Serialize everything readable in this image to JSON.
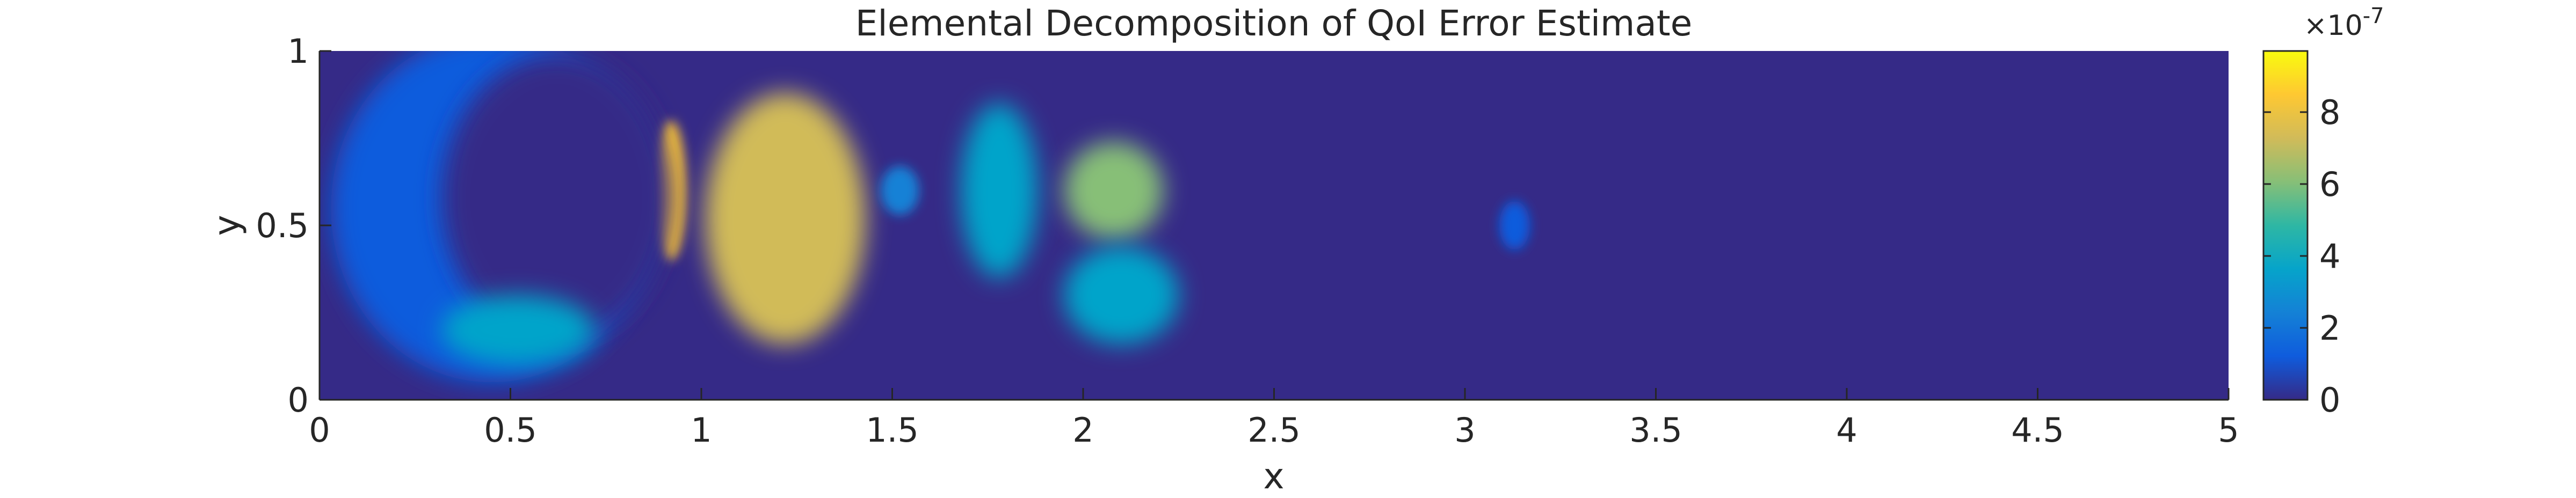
{
  "chart_data": {
    "type": "heatmap",
    "title": "Elemental Decomposition of QoI Error Estimate",
    "xlabel": "x",
    "ylabel": "y",
    "xlim": [
      0,
      5
    ],
    "ylim": [
      0,
      1
    ],
    "x_ticks": [
      0,
      0.5,
      1,
      1.5,
      2,
      2.5,
      3,
      3.5,
      4,
      4.5,
      5
    ],
    "x_tick_labels": [
      "0",
      "0.5",
      "1",
      "1.5",
      "2",
      "2.5",
      "3",
      "3.5",
      "4",
      "4.5",
      "5"
    ],
    "y_ticks": [
      0,
      0.5,
      1
    ],
    "y_tick_labels": [
      "0",
      "0.5",
      "1"
    ],
    "colorbar": {
      "min": 0,
      "max": 9.7,
      "ticks": [
        0,
        2,
        4,
        6,
        8
      ],
      "tick_labels": [
        "0",
        "2",
        "4",
        "6",
        "8"
      ],
      "exponent_label": "×10-7",
      "exponent_base": "×10",
      "exponent_power": "-7",
      "colormap": "parula"
    },
    "regions": [
      {
        "id": "wake-left",
        "x": 0.45,
        "y": 0.55,
        "rx": 0.42,
        "ry": 0.5,
        "value": 1.6
      },
      {
        "id": "crescent-peak",
        "x": 0.92,
        "y": 0.6,
        "rx": 0.04,
        "ry": 0.2,
        "value": 8.0
      },
      {
        "id": "hole-low-error",
        "x": 0.62,
        "y": 0.58,
        "rx": 0.3,
        "ry": 0.41,
        "value": 0
      },
      {
        "id": "bottom-lobe",
        "x": 0.52,
        "y": 0.2,
        "rx": 0.2,
        "ry": 0.1,
        "value": 3.5
      },
      {
        "id": "center-blob",
        "x": 1.22,
        "y": 0.52,
        "rx": 0.21,
        "ry": 0.36,
        "value": 6.8
      },
      {
        "id": "small-spot",
        "x": 1.52,
        "y": 0.6,
        "rx": 0.05,
        "ry": 0.07,
        "value": 2.5
      },
      {
        "id": "right-ring",
        "x": 2.08,
        "y": 0.6,
        "rx": 0.13,
        "ry": 0.14,
        "value": 6.0
      },
      {
        "id": "right-lower",
        "x": 2.1,
        "y": 0.3,
        "rx": 0.15,
        "ry": 0.14,
        "value": 3.8
      },
      {
        "id": "right-left-lobe",
        "x": 1.78,
        "y": 0.6,
        "rx": 0.1,
        "ry": 0.25,
        "value": 3.2
      },
      {
        "id": "far-spot",
        "x": 3.13,
        "y": 0.5,
        "rx": 0.04,
        "ry": 0.07,
        "value": 1.3
      }
    ],
    "grid": false,
    "legend": "none"
  },
  "colors": {
    "background_value": "#352a87",
    "axis": "#262626",
    "parula": [
      "#352a87",
      "#0f5cdd",
      "#1481d6",
      "#06a4ca",
      "#2eb7a4",
      "#87bf77",
      "#d1bb59",
      "#fec832",
      "#f9fb0e"
    ]
  }
}
